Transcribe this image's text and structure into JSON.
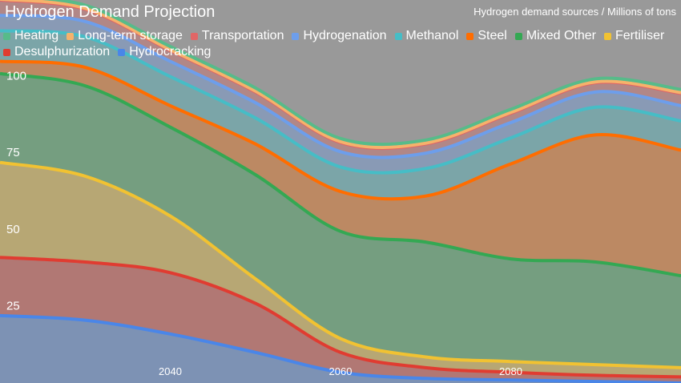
{
  "chart_data": {
    "type": "area",
    "title": "Hydrogen Demand Projection",
    "subtitle": "Hydrogen demand sources / Millions of tons",
    "xlabel": "",
    "ylabel": "",
    "x": [
      2020,
      2030,
      2040,
      2050,
      2060,
      2070,
      2080,
      2090,
      2100
    ],
    "x_ticks": [
      2040,
      2060,
      2080
    ],
    "y_ticks": [
      25,
      50,
      75,
      100
    ],
    "ylim": [
      0,
      125
    ],
    "xlim": [
      2020,
      2100
    ],
    "grid": false,
    "legend_position": "top-left",
    "stacked": true,
    "series": [
      {
        "name": "Hydrocracking",
        "color": "#4a86e8",
        "values": [
          22,
          20.5,
          16,
          10,
          3.5,
          1.5,
          1,
          0.5,
          0
        ]
      },
      {
        "name": "Desulphurization",
        "color": "#e03c31",
        "values": [
          19,
          19,
          20,
          16,
          6.5,
          3.5,
          2.5,
          2,
          2
        ]
      },
      {
        "name": "Fertiliser",
        "color": "#f1c232",
        "values": [
          31,
          28,
          18.5,
          8,
          4.5,
          3.5,
          3.5,
          3.5,
          3
        ]
      },
      {
        "name": "Mixed Other",
        "color": "#34a853",
        "values": [
          29,
          29.5,
          29,
          34,
          35,
          37.5,
          33.5,
          33.5,
          30
        ]
      },
      {
        "name": "Steel",
        "color": "#ff6d00",
        "values": [
          4,
          6,
          7,
          10,
          13,
          15,
          31,
          41.5,
          41
        ]
      },
      {
        "name": "Methanol",
        "color": "#46bdc6",
        "values": [
          10,
          10,
          9.5,
          8.5,
          8,
          9,
          8.5,
          9,
          9.5
        ]
      },
      {
        "name": "Hydrogenation",
        "color": "#6d9eeb",
        "values": [
          5,
          5,
          5,
          5,
          5,
          5,
          5,
          5,
          5
        ]
      },
      {
        "name": "Transportation",
        "color": "#e06666",
        "values": [
          5,
          4,
          3.5,
          3.5,
          3,
          3,
          3,
          3,
          4
        ]
      },
      {
        "name": "Long-term storage",
        "color": "#f6b26b",
        "values": [
          0.3,
          0.3,
          0.3,
          0.3,
          0.3,
          0.3,
          0.3,
          0.3,
          0.3
        ]
      },
      {
        "name": "Heating",
        "color": "#57bb8a",
        "values": [
          1,
          1,
          1,
          1,
          1,
          1,
          1,
          1,
          1
        ]
      }
    ],
    "legend_order": [
      "Heating",
      "Long-term storage",
      "Transportation",
      "Hydrogenation",
      "Methanol",
      "Steel",
      "Mixed Other",
      "Fertiliser",
      "Desulphurization",
      "Hydrocracking"
    ]
  }
}
